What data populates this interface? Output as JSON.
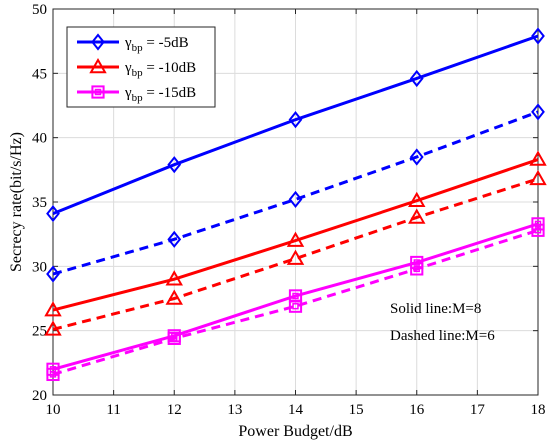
{
  "chart_data": {
    "type": "line",
    "xlabel": "Power Budget/dB",
    "ylabel": "Secrecy rate(bit/s/Hz)",
    "xlim": [
      10,
      18
    ],
    "ylim": [
      20,
      50
    ],
    "xticks": [
      10,
      11,
      12,
      13,
      14,
      15,
      16,
      17,
      18
    ],
    "yticks": [
      20,
      25,
      30,
      35,
      40,
      45,
      50
    ],
    "x": [
      10,
      12,
      14,
      16,
      18
    ],
    "grid": true,
    "legend_position": "top-left",
    "legend": [
      {
        "symbol": "γ",
        "subscript": "bp",
        "suffix": " = -5dB",
        "color": "#0000FF",
        "marker": "diamond"
      },
      {
        "symbol": "γ",
        "subscript": "bp",
        "suffix": " = -10dB",
        "color": "#FF0000",
        "marker": "triangle"
      },
      {
        "symbol": "γ",
        "subscript": "bp",
        "suffix": " = -15dB",
        "color": "#FF00FF",
        "marker": "square"
      }
    ],
    "series": [
      {
        "values": [
          34.1,
          37.9,
          41.4,
          44.6,
          47.9
        ],
        "color": "#0000FF",
        "marker": "diamond",
        "dash": "solid"
      },
      {
        "values": [
          29.4,
          32.1,
          35.2,
          38.5,
          42.0
        ],
        "color": "#0000FF",
        "marker": "diamond",
        "dash": "dashed"
      },
      {
        "values": [
          26.6,
          29.0,
          32.0,
          35.1,
          38.3
        ],
        "color": "#FF0000",
        "marker": "triangle",
        "dash": "solid"
      },
      {
        "values": [
          25.1,
          27.5,
          30.6,
          33.8,
          36.8
        ],
        "color": "#FF0000",
        "marker": "triangle",
        "dash": "dashed"
      },
      {
        "values": [
          22.0,
          24.6,
          27.7,
          30.3,
          33.3
        ],
        "color": "#FF00FF",
        "marker": "square",
        "dash": "solid"
      },
      {
        "values": [
          21.6,
          24.4,
          26.9,
          29.8,
          32.8
        ],
        "color": "#FF00FF",
        "marker": "square",
        "dash": "dashed"
      }
    ],
    "annotations": [
      "Solid line:M=8",
      "Dashed line:M=6"
    ]
  }
}
